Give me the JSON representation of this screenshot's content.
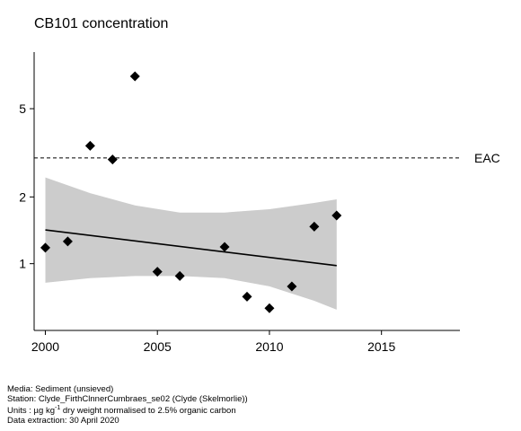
{
  "chart_data": {
    "type": "scatter",
    "title": "CB101 concentration",
    "xlabel": "",
    "ylabel": "",
    "y_scale": "log",
    "xlim": [
      1999.5,
      2018.5
    ],
    "ylim": [
      0.5,
      9.0
    ],
    "x_ticks": [
      2000,
      2005,
      2010,
      2015
    ],
    "y_ticks": [
      1,
      2,
      5
    ],
    "grid": false,
    "points": {
      "x": [
        2000,
        2001,
        2002,
        2003,
        2004,
        2005,
        2006,
        2008,
        2009,
        2010,
        2011,
        2012,
        2013
      ],
      "y": [
        1.18,
        1.26,
        3.4,
        2.95,
        7.0,
        0.92,
        0.88,
        1.19,
        0.71,
        0.63,
        0.79,
        1.47,
        1.65
      ]
    },
    "trend": {
      "x": [
        2000,
        2013
      ],
      "y": [
        1.42,
        0.98
      ]
    },
    "confidence_band": {
      "x": [
        2000,
        2002,
        2004,
        2006,
        2008,
        2010,
        2012,
        2013
      ],
      "upper": [
        2.45,
        2.08,
        1.83,
        1.7,
        1.7,
        1.76,
        1.88,
        1.95
      ],
      "lower": [
        0.82,
        0.86,
        0.88,
        0.88,
        0.86,
        0.79,
        0.68,
        0.62
      ]
    },
    "reference_lines": [
      {
        "label": "EAC",
        "value": 3.0,
        "style": "dashed"
      }
    ]
  },
  "footer": {
    "media": "Media: Sediment (unsieved)",
    "station": "Station: Clyde_FirthClnnerCumbraes_se02 (Clyde (Skelmorlie))",
    "units_prefix": "Units : µg kg",
    "units_sup": "-1",
    "units_suffix": " dry weight normalised to 2.5% organic carbon",
    "extraction": "Data extraction: 30 April 2020"
  },
  "colors": {
    "points": "#000000",
    "band": "#cccccc",
    "trend": "#000000",
    "axis": "#000000"
  }
}
